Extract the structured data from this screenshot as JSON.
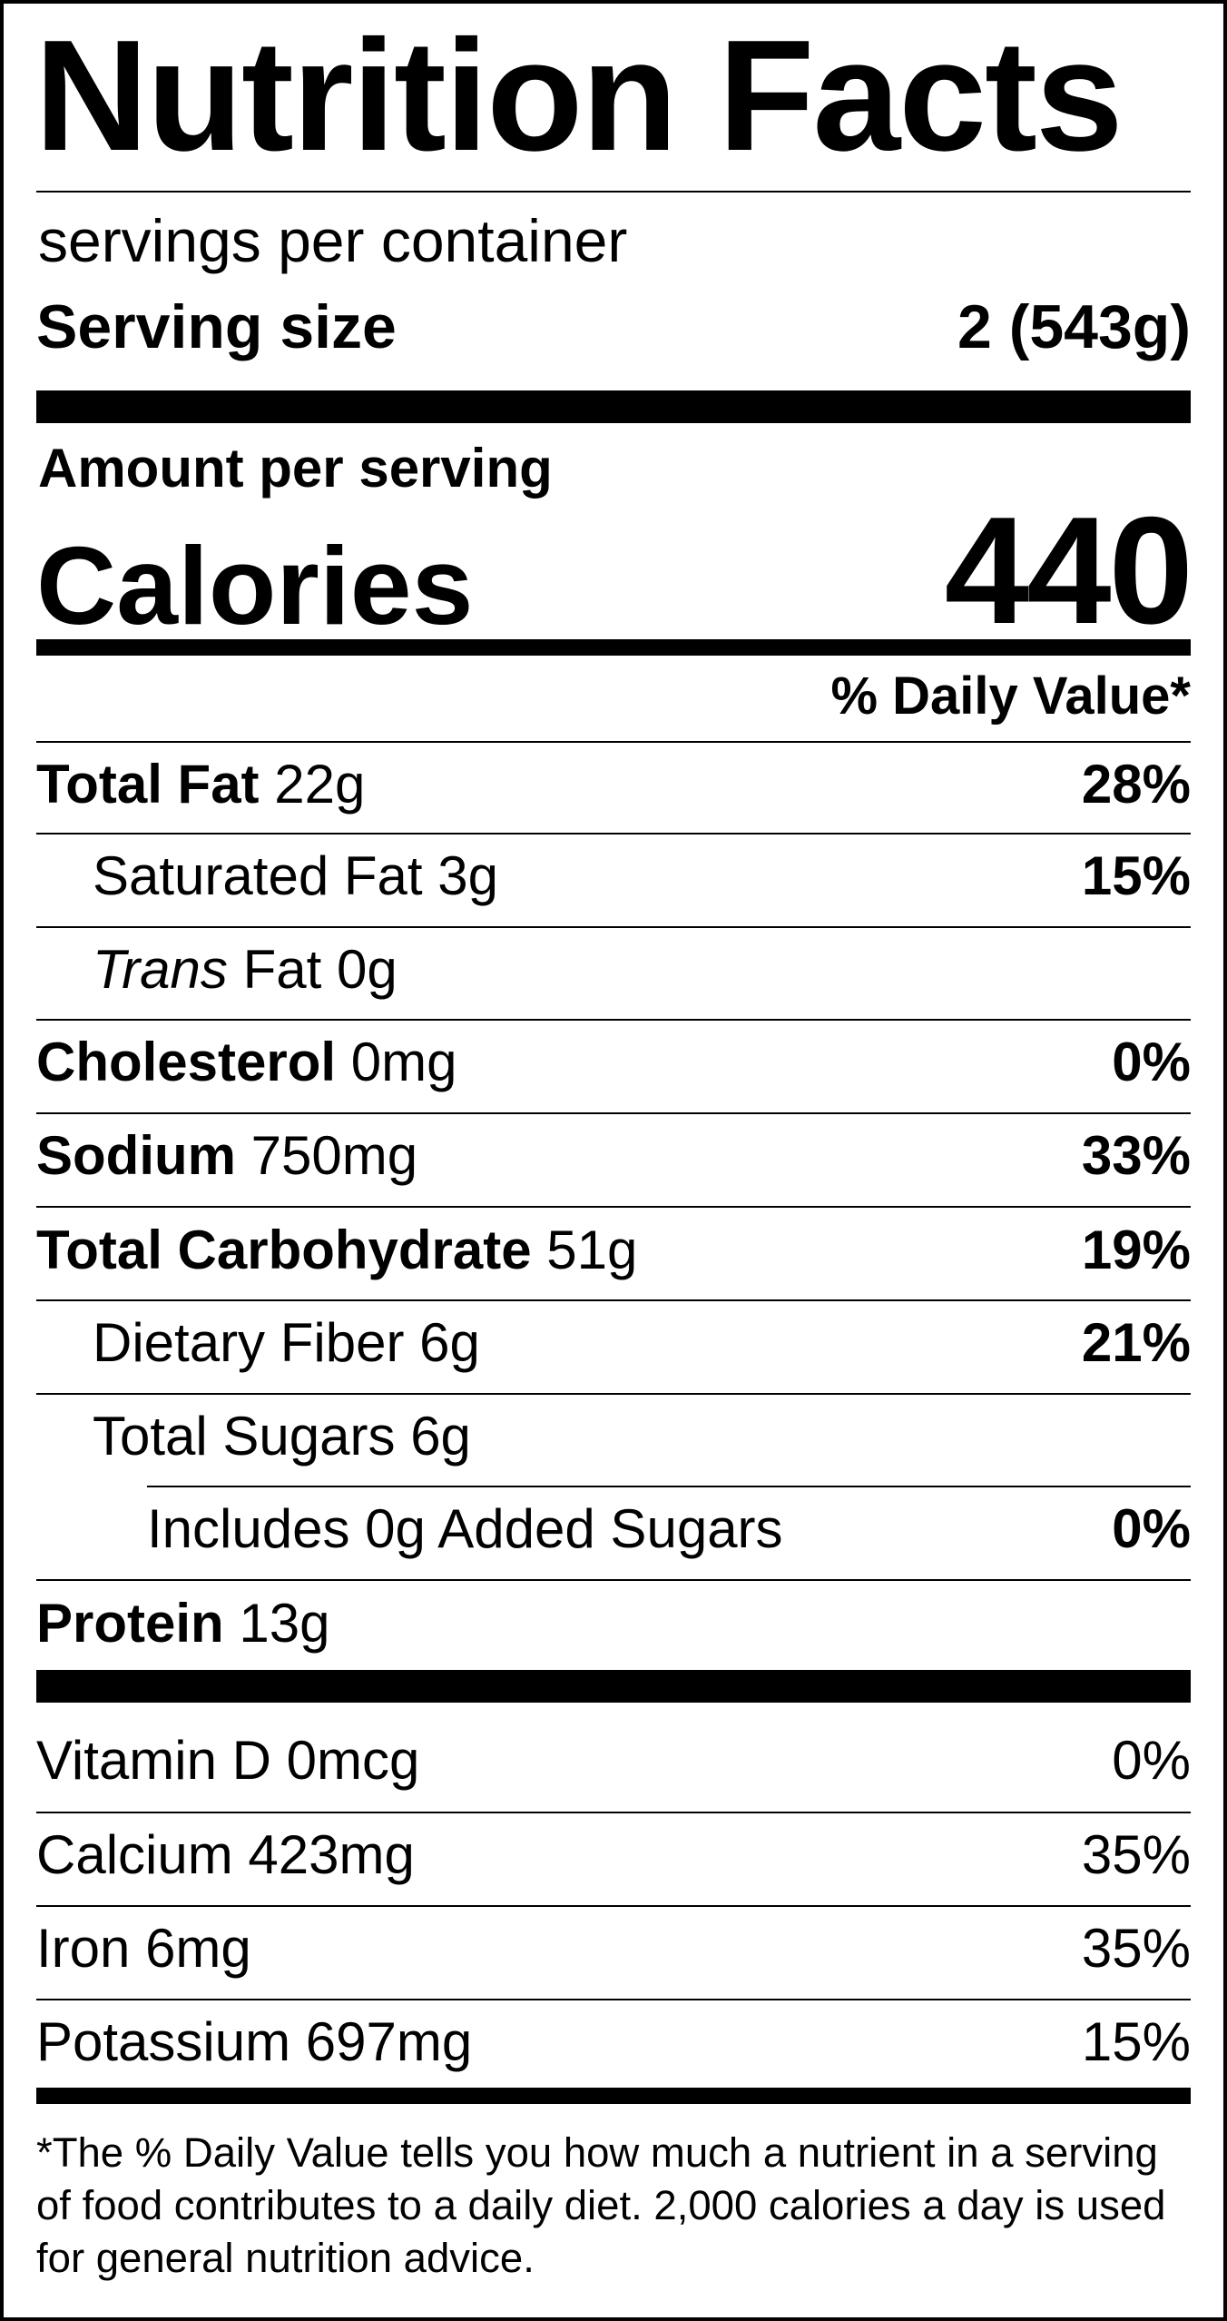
{
  "title": "Nutrition Facts",
  "servings_per_container": "servings per container",
  "serving_size": {
    "label": "Serving size",
    "value": "2 (543g)"
  },
  "amount_per_serving": "Amount per serving",
  "calories": {
    "label": "Calories",
    "value": "440"
  },
  "daily_value_header": "% Daily Value*",
  "nutrients": {
    "total_fat": {
      "label": "Total Fat",
      "amount": "22g",
      "dv": "28%"
    },
    "saturated_fat": {
      "label": "Saturated Fat",
      "amount": "3g",
      "dv": "15%"
    },
    "trans_fat": {
      "label_italic": "Trans",
      "label": "Fat",
      "amount": "0g"
    },
    "cholesterol": {
      "label": "Cholesterol",
      "amount": "0mg",
      "dv": "0%"
    },
    "sodium": {
      "label": "Sodium",
      "amount": "750mg",
      "dv": "33%"
    },
    "total_carbohydrate": {
      "label": "Total Carbohydrate",
      "amount": "51g",
      "dv": "19%"
    },
    "dietary_fiber": {
      "label": "Dietary Fiber",
      "amount": "6g",
      "dv": "21%"
    },
    "total_sugars": {
      "label": "Total Sugars",
      "amount": "6g"
    },
    "added_sugars": {
      "prefix": "Includes",
      "amount": "0g",
      "label": "Added Sugars",
      "dv": "0%"
    },
    "protein": {
      "label": "Protein",
      "amount": "13g"
    }
  },
  "vitamins": {
    "vitamin_d": {
      "label": "Vitamin D",
      "amount": "0mcg",
      "dv": "0%"
    },
    "calcium": {
      "label": "Calcium",
      "amount": "423mg",
      "dv": "35%"
    },
    "iron": {
      "label": "Iron",
      "amount": "6mg",
      "dv": "35%"
    },
    "potassium": {
      "label": "Potassium",
      "amount": "697mg",
      "dv": "15%"
    }
  },
  "footnote": "*The % Daily Value tells you how much a nutrient in a serving of food contributes to a daily diet. 2,000 calories a day is used for general nutrition advice."
}
